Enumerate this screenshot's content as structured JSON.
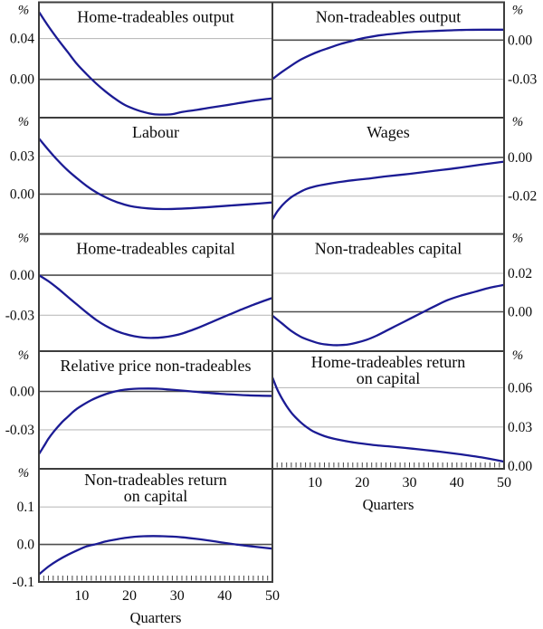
{
  "figure": {
    "unit_label": "%",
    "x_axis_title": "Quarters",
    "x_ticks": [
      10,
      20,
      30,
      40,
      50
    ],
    "x_range": [
      1,
      50
    ],
    "colors": {
      "line": "#1b1b94",
      "grid_light": "#bdbdbd",
      "grid_zero": "#4f4f4f",
      "border": "#3d3d3d",
      "tick": "#444444",
      "text": "#0a0a0a",
      "background": "#ffffff"
    }
  },
  "chart_data": [
    {
      "type": "line",
      "title": "Home-tradeables output",
      "row": 1,
      "col": "left",
      "ylabel_unit": "%",
      "ylim": [
        -0.0375,
        0.0755
      ],
      "gridlines": [
        {
          "value": 0.04,
          "label": "0.04",
          "style": "light"
        },
        {
          "value": 0.0,
          "label": "0.00",
          "style": "zero"
        }
      ],
      "has_x_axis": false,
      "x": [
        1,
        3,
        5,
        7,
        9,
        11,
        13,
        15,
        17,
        19,
        21,
        23,
        25,
        27,
        29,
        31,
        34,
        37,
        40,
        43,
        46,
        50
      ],
      "y": [
        0.066,
        0.052,
        0.039,
        0.027,
        0.015,
        0.005,
        -0.004,
        -0.012,
        -0.019,
        -0.025,
        -0.029,
        -0.032,
        -0.034,
        -0.0345,
        -0.034,
        -0.032,
        -0.03,
        -0.0277,
        -0.0255,
        -0.0232,
        -0.021,
        -0.0185
      ]
    },
    {
      "type": "line",
      "title": "Non-tradeables output",
      "row": 1,
      "col": "right",
      "ylabel_unit": "%",
      "ylim": [
        -0.0595,
        0.029
      ],
      "gridlines": [
        {
          "value": 0.0,
          "label": "0.00",
          "style": "zero"
        },
        {
          "value": -0.03,
          "label": "-0.03",
          "style": "light"
        }
      ],
      "has_x_axis": false,
      "x": [
        1,
        3,
        5,
        7,
        9,
        11,
        13,
        15,
        17,
        19,
        21,
        24,
        27,
        30,
        34,
        38,
        42,
        46,
        50
      ],
      "y": [
        -0.03,
        -0.0245,
        -0.0195,
        -0.015,
        -0.0115,
        -0.0085,
        -0.006,
        -0.0035,
        -0.0015,
        0.0005,
        0.002,
        0.0038,
        0.005,
        0.006,
        0.0068,
        0.0074,
        0.0078,
        0.008,
        0.008
      ]
    },
    {
      "type": "line",
      "title": "Labour",
      "row": 2,
      "col": "left",
      "ylabel_unit": "%",
      "ylim": [
        -0.0315,
        0.0605
      ],
      "gridlines": [
        {
          "value": 0.03,
          "label": "0.03",
          "style": "light"
        },
        {
          "value": 0.0,
          "label": "0.00",
          "style": "zero"
        }
      ],
      "has_x_axis": false,
      "x": [
        1,
        3,
        5,
        7,
        9,
        11,
        13,
        15,
        17,
        19,
        21,
        24,
        27,
        30,
        34,
        38,
        42,
        46,
        50
      ],
      "y": [
        0.044,
        0.035,
        0.0265,
        0.019,
        0.0125,
        0.0065,
        0.0015,
        -0.0025,
        -0.0058,
        -0.0083,
        -0.01,
        -0.0113,
        -0.0118,
        -0.0116,
        -0.0109,
        -0.0099,
        -0.0088,
        -0.0077,
        -0.0066
      ]
    },
    {
      "type": "line",
      "title": "Wages",
      "row": 2,
      "col": "right",
      "ylabel_unit": "%",
      "ylim": [
        -0.0395,
        0.0205
      ],
      "gridlines": [
        {
          "value": 0.0,
          "label": "0.00",
          "style": "zero"
        },
        {
          "value": -0.02,
          "label": "-0.02",
          "style": "light"
        }
      ],
      "has_x_axis": false,
      "x": [
        1,
        2,
        3,
        4,
        5,
        6,
        8,
        10,
        12,
        15,
        18,
        21,
        25,
        30,
        35,
        40,
        45,
        50
      ],
      "y": [
        -0.032,
        -0.028,
        -0.025,
        -0.0225,
        -0.0205,
        -0.019,
        -0.0165,
        -0.015,
        -0.014,
        -0.0128,
        -0.0118,
        -0.011,
        -0.0098,
        -0.0085,
        -0.007,
        -0.0055,
        -0.0038,
        -0.0022
      ]
    },
    {
      "type": "line",
      "title": "Home-tradeables capital",
      "row": 3,
      "col": "left",
      "ylabel_unit": "%",
      "ylim": [
        -0.057,
        0.031
      ],
      "gridlines": [
        {
          "value": 0.0,
          "label": "0.00",
          "style": "zero"
        },
        {
          "value": -0.03,
          "label": "-0.03",
          "style": "light"
        }
      ],
      "has_x_axis": false,
      "x": [
        1,
        3,
        5,
        7,
        9,
        11,
        13,
        15,
        17,
        19,
        21,
        23,
        25,
        27,
        29,
        31,
        34,
        37,
        40,
        43,
        46,
        50
      ],
      "y": [
        0.0,
        -0.0045,
        -0.01,
        -0.016,
        -0.022,
        -0.028,
        -0.0335,
        -0.038,
        -0.0415,
        -0.044,
        -0.0458,
        -0.0468,
        -0.047,
        -0.0466,
        -0.0455,
        -0.0438,
        -0.04,
        -0.0355,
        -0.031,
        -0.0265,
        -0.0222,
        -0.017
      ]
    },
    {
      "type": "line",
      "title": "Non-tradeables capital",
      "row": 3,
      "col": "right",
      "ylabel_unit": "%",
      "ylim": [
        -0.0205,
        0.0405
      ],
      "gridlines": [
        {
          "value": 0.02,
          "label": "0.02",
          "style": "light"
        },
        {
          "value": 0.0,
          "label": "0.00",
          "style": "zero"
        }
      ],
      "has_x_axis": false,
      "x": [
        1,
        3,
        5,
        7,
        9,
        11,
        13,
        15,
        17,
        19,
        21,
        23,
        25,
        27,
        29,
        31,
        33,
        35,
        38,
        41,
        44,
        47,
        50
      ],
      "y": [
        -0.002,
        -0.006,
        -0.01,
        -0.013,
        -0.015,
        -0.0165,
        -0.0172,
        -0.0174,
        -0.017,
        -0.016,
        -0.0145,
        -0.0125,
        -0.01,
        -0.0075,
        -0.005,
        -0.0025,
        0.0,
        0.0025,
        0.006,
        0.0085,
        0.0105,
        0.0125,
        0.014
      ]
    },
    {
      "type": "line",
      "title": "Relative price non-tradeables",
      "row": 4,
      "col": "left",
      "ylabel_unit": "%",
      "ylim": [
        -0.0605,
        0.0315
      ],
      "gridlines": [
        {
          "value": 0.0,
          "label": "0.00",
          "style": "zero"
        },
        {
          "value": -0.03,
          "label": "-0.03",
          "style": "light"
        }
      ],
      "has_x_axis": false,
      "x": [
        1,
        2,
        3,
        4,
        5,
        6,
        7,
        8,
        9,
        10,
        12,
        14,
        16,
        18,
        20,
        22,
        24,
        26,
        28,
        30,
        33,
        36,
        39,
        42,
        45,
        50
      ],
      "y": [
        -0.049,
        -0.043,
        -0.037,
        -0.032,
        -0.0275,
        -0.0235,
        -0.02,
        -0.0165,
        -0.0135,
        -0.011,
        -0.0068,
        -0.0035,
        -0.001,
        0.0008,
        0.0018,
        0.0022,
        0.0023,
        0.0021,
        0.0016,
        0.001,
        0.0,
        -0.001,
        -0.0018,
        -0.0025,
        -0.003,
        -0.0035
      ]
    },
    {
      "type": "line",
      "title": "Home-tradeables return on capital",
      "title_lines": [
        "Home-tradeables return",
        "on capital"
      ],
      "row": 4,
      "col": "right",
      "ylabel_unit": "%",
      "ylim": [
        -0.002,
        0.088
      ],
      "gridlines": [
        {
          "value": 0.06,
          "label": "0.06",
          "style": "light"
        },
        {
          "value": 0.03,
          "label": "0.03",
          "style": "light"
        },
        {
          "value": 0.0,
          "label": "0.00",
          "style": "label-only"
        }
      ],
      "has_x_axis": true,
      "x": [
        1,
        2,
        3,
        4,
        5,
        6,
        7,
        8,
        9,
        10,
        12,
        14,
        16,
        18,
        20,
        23,
        26,
        29,
        32,
        35,
        38,
        41,
        44,
        47,
        50
      ],
      "y": [
        0.068,
        0.059,
        0.052,
        0.046,
        0.041,
        0.037,
        0.0335,
        0.0305,
        0.028,
        0.026,
        0.023,
        0.021,
        0.0195,
        0.0183,
        0.0173,
        0.016,
        0.015,
        0.014,
        0.0129,
        0.0117,
        0.0104,
        0.009,
        0.0074,
        0.0056,
        0.0035
      ]
    },
    {
      "type": "line",
      "title": "Non-tradeables return on capital",
      "title_lines": [
        "Non-tradeables return",
        "on capital"
      ],
      "row": 5,
      "col": "left",
      "ylabel_unit": "%",
      "ylim": [
        -0.1,
        0.202
      ],
      "gridlines": [
        {
          "value": 0.1,
          "label": "0.1",
          "style": "light"
        },
        {
          "value": 0.0,
          "label": "0.0",
          "style": "zero"
        },
        {
          "value": -0.1,
          "label": "-0.1",
          "style": "label-only"
        }
      ],
      "has_x_axis": true,
      "x": [
        1,
        3,
        5,
        7,
        9,
        11,
        13,
        15,
        17,
        19,
        21,
        23,
        25,
        27,
        29,
        31,
        33,
        35,
        37,
        39,
        41,
        43,
        45,
        47,
        50
      ],
      "y": [
        -0.08,
        -0.059,
        -0.042,
        -0.028,
        -0.016,
        -0.005,
        0.001,
        0.008,
        0.013,
        0.0175,
        0.0205,
        0.022,
        0.0225,
        0.022,
        0.021,
        0.019,
        0.0165,
        0.0135,
        0.01,
        0.006,
        0.0025,
        -0.001,
        -0.004,
        -0.007,
        -0.011
      ]
    }
  ]
}
